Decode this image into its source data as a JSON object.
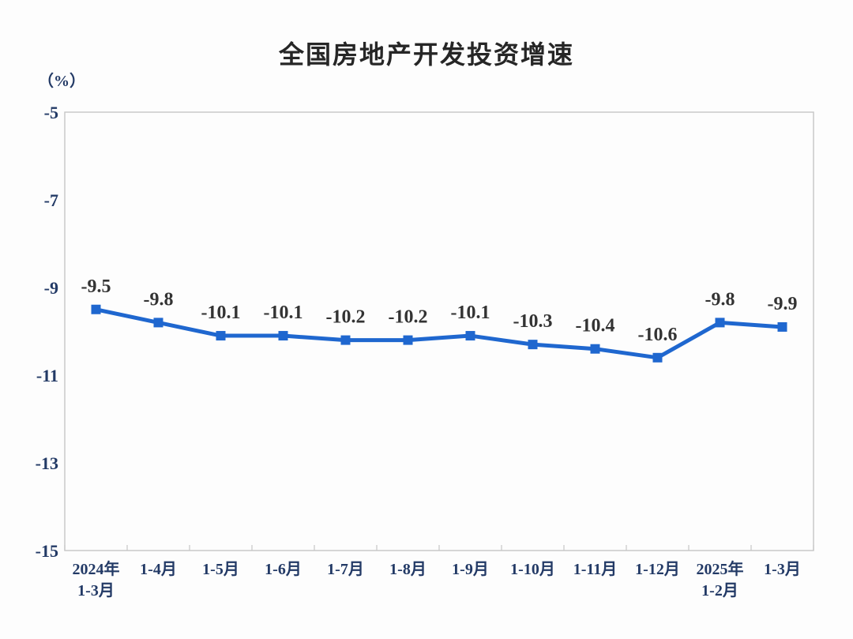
{
  "chart_data": {
    "type": "line",
    "title": "全国房地产开发投资增速",
    "unit_label": "（%）",
    "categories": [
      "2024年\n1-3月",
      "1-4月",
      "1-5月",
      "1-6月",
      "1-7月",
      "1-8月",
      "1-9月",
      "1-10月",
      "1-11月",
      "1-12月",
      "2025年\n1-2月",
      "1-3月"
    ],
    "series": [
      {
        "name": "全国房地产开发投资增速",
        "values": [
          -9.5,
          -9.8,
          -10.1,
          -10.1,
          -10.2,
          -10.2,
          -10.1,
          -10.3,
          -10.4,
          -10.6,
          -9.8,
          -9.9
        ]
      }
    ],
    "data_labels": [
      "-9.5",
      "-9.8",
      "-10.1",
      "-10.1",
      "-10.2",
      "-10.2",
      "-10.1",
      "-10.3",
      "-10.4",
      "-10.6",
      "-9.8",
      "-9.9"
    ],
    "xlabel": "",
    "ylabel": "",
    "ylim": [
      -15,
      -5
    ],
    "y_ticks": [
      -5,
      -7,
      -9,
      -11,
      -13,
      -15
    ],
    "grid": false,
    "legend": "none",
    "marker": "square",
    "colors": {
      "line": "#1f67cf",
      "marker": "#1f67cf",
      "axis_text": "#233a66",
      "data_label_text": "#333333",
      "title_text": "#262626",
      "plot_border": "#c6c6c6"
    }
  }
}
